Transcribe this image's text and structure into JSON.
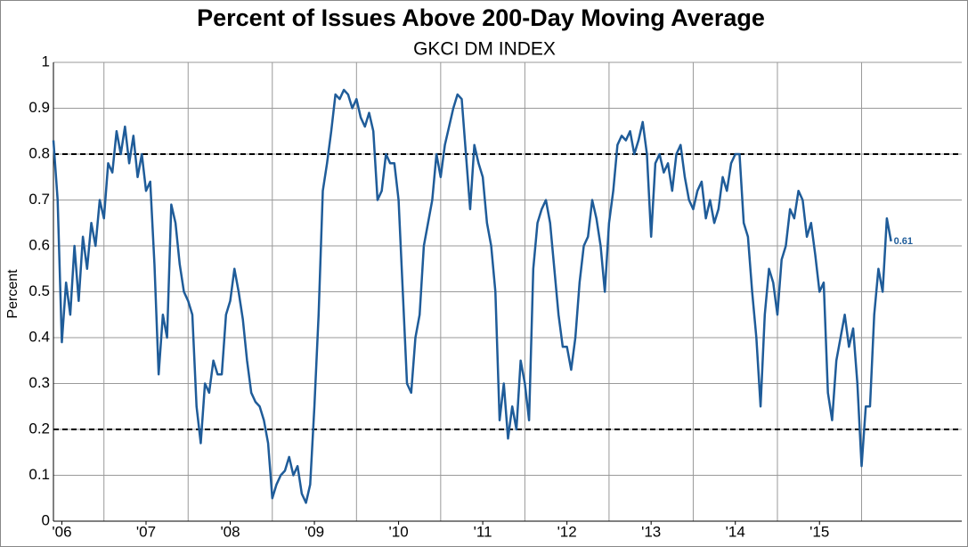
{
  "chart_data": {
    "type": "line",
    "title": "Percent of Issues Above 200-Day Moving Average",
    "subtitle": "GKCI DM INDEX",
    "y_label": "Percent",
    "xlim": [
      2005.9,
      2016.69
    ],
    "ylim": [
      0,
      1
    ],
    "yticks": [
      0,
      0.1,
      0.2,
      0.3,
      0.4,
      0.5,
      0.6,
      0.7,
      0.8,
      0.9,
      1
    ],
    "xticks": [
      {
        "value": 2006,
        "label": "'06"
      },
      {
        "value": 2007,
        "label": "'07"
      },
      {
        "value": 2008,
        "label": "'08"
      },
      {
        "value": 2009,
        "label": "'09"
      },
      {
        "value": 2010,
        "label": "'10"
      },
      {
        "value": 2011,
        "label": "'11"
      },
      {
        "value": 2012,
        "label": "'12"
      },
      {
        "value": 2013,
        "label": "'13"
      },
      {
        "value": 2014,
        "label": "'14"
      },
      {
        "value": 2015,
        "label": "'15"
      }
    ],
    "x_gridlines": [
      2006.5,
      2007.5,
      2008.5,
      2009.5,
      2010.5,
      2011.5,
      2012.5,
      2013.5,
      2014.5,
      2015.5
    ],
    "grid": true,
    "reference_lines": [
      0.2,
      0.8
    ],
    "label_last": true,
    "x": [
      2005.9,
      2005.95,
      2006,
      2006.05,
      2006.1,
      2006.15,
      2006.2,
      2006.25,
      2006.3,
      2006.35,
      2006.4,
      2006.45,
      2006.5,
      2006.55,
      2006.6,
      2006.65,
      2006.7,
      2006.75,
      2006.8,
      2006.85,
      2006.9,
      2006.95,
      2007,
      2007.05,
      2007.1,
      2007.15,
      2007.2,
      2007.25,
      2007.3,
      2007.35,
      2007.4,
      2007.45,
      2007.5,
      2007.55,
      2007.6,
      2007.65,
      2007.7,
      2007.75,
      2007.8,
      2007.85,
      2007.9,
      2007.95,
      2008,
      2008.05,
      2008.1,
      2008.15,
      2008.2,
      2008.25,
      2008.3,
      2008.35,
      2008.4,
      2008.45,
      2008.5,
      2008.55,
      2008.6,
      2008.65,
      2008.7,
      2008.75,
      2008.8,
      2008.85,
      2008.9,
      2008.95,
      2009,
      2009.05,
      2009.1,
      2009.15,
      2009.2,
      2009.25,
      2009.3,
      2009.35,
      2009.4,
      2009.45,
      2009.5,
      2009.55,
      2009.6,
      2009.65,
      2009.7,
      2009.75,
      2009.8,
      2009.85,
      2009.9,
      2009.95,
      2010,
      2010.05,
      2010.1,
      2010.15,
      2010.2,
      2010.25,
      2010.3,
      2010.35,
      2010.4,
      2010.45,
      2010.5,
      2010.55,
      2010.6,
      2010.65,
      2010.7,
      2010.75,
      2010.8,
      2010.85,
      2010.9,
      2010.95,
      2011,
      2011.05,
      2011.1,
      2011.15,
      2011.2,
      2011.25,
      2011.3,
      2011.35,
      2011.4,
      2011.45,
      2011.5,
      2011.55,
      2011.6,
      2011.65,
      2011.7,
      2011.75,
      2011.8,
      2011.85,
      2011.9,
      2011.95,
      2012,
      2012.05,
      2012.1,
      2012.15,
      2012.2,
      2012.25,
      2012.3,
      2012.35,
      2012.4,
      2012.45,
      2012.5,
      2012.55,
      2012.6,
      2012.65,
      2012.7,
      2012.75,
      2012.8,
      2012.85,
      2012.9,
      2012.95,
      2013,
      2013.05,
      2013.1,
      2013.15,
      2013.2,
      2013.25,
      2013.3,
      2013.35,
      2013.4,
      2013.45,
      2013.5,
      2013.55,
      2013.6,
      2013.65,
      2013.7,
      2013.75,
      2013.8,
      2013.85,
      2013.9,
      2013.95,
      2014,
      2014.05,
      2014.1,
      2014.15,
      2014.2,
      2014.25,
      2014.3,
      2014.35,
      2014.4,
      2014.45,
      2014.5,
      2014.55,
      2014.6,
      2014.65,
      2014.7,
      2014.75,
      2014.8,
      2014.85,
      2014.9,
      2014.95,
      2015,
      2015.05,
      2015.1,
      2015.15,
      2015.2,
      2015.25,
      2015.3,
      2015.35,
      2015.4,
      2015.45,
      2015.5,
      2015.55,
      2015.6,
      2015.65,
      2015.7,
      2015.75,
      2015.8,
      2015.85
    ],
    "series": [
      {
        "color": "#1f5c99",
        "values": [
          0.83,
          0.7,
          0.39,
          0.52,
          0.45,
          0.6,
          0.48,
          0.62,
          0.55,
          0.65,
          0.6,
          0.7,
          0.66,
          0.78,
          0.76,
          0.85,
          0.8,
          0.86,
          0.78,
          0.84,
          0.75,
          0.8,
          0.72,
          0.74,
          0.56,
          0.32,
          0.45,
          0.4,
          0.69,
          0.65,
          0.56,
          0.5,
          0.48,
          0.45,
          0.25,
          0.17,
          0.3,
          0.28,
          0.35,
          0.32,
          0.32,
          0.45,
          0.48,
          0.55,
          0.5,
          0.44,
          0.35,
          0.28,
          0.26,
          0.25,
          0.22,
          0.17,
          0.05,
          0.08,
          0.1,
          0.11,
          0.14,
          0.1,
          0.12,
          0.06,
          0.04,
          0.08,
          0.25,
          0.45,
          0.72,
          0.78,
          0.85,
          0.93,
          0.92,
          0.94,
          0.93,
          0.9,
          0.92,
          0.88,
          0.86,
          0.89,
          0.85,
          0.7,
          0.72,
          0.8,
          0.78,
          0.78,
          0.7,
          0.5,
          0.3,
          0.28,
          0.4,
          0.45,
          0.6,
          0.65,
          0.7,
          0.8,
          0.75,
          0.82,
          0.86,
          0.9,
          0.93,
          0.92,
          0.8,
          0.68,
          0.82,
          0.78,
          0.75,
          0.65,
          0.6,
          0.5,
          0.22,
          0.3,
          0.18,
          0.25,
          0.2,
          0.35,
          0.3,
          0.22,
          0.55,
          0.65,
          0.68,
          0.7,
          0.65,
          0.55,
          0.45,
          0.38,
          0.38,
          0.33,
          0.4,
          0.52,
          0.6,
          0.62,
          0.7,
          0.66,
          0.6,
          0.5,
          0.65,
          0.72,
          0.82,
          0.84,
          0.83,
          0.85,
          0.8,
          0.83,
          0.87,
          0.8,
          0.62,
          0.78,
          0.8,
          0.76,
          0.78,
          0.72,
          0.8,
          0.82,
          0.75,
          0.7,
          0.68,
          0.72,
          0.74,
          0.66,
          0.7,
          0.65,
          0.68,
          0.75,
          0.72,
          0.78,
          0.8,
          0.8,
          0.65,
          0.62,
          0.5,
          0.4,
          0.25,
          0.45,
          0.55,
          0.52,
          0.45,
          0.57,
          0.6,
          0.68,
          0.66,
          0.72,
          0.7,
          0.62,
          0.65,
          0.58,
          0.5,
          0.52,
          0.28,
          0.22,
          0.35,
          0.4,
          0.45,
          0.38,
          0.42,
          0.3,
          0.12,
          0.25,
          0.25,
          0.45,
          0.55,
          0.5,
          0.66,
          0.61
        ]
      }
    ]
  }
}
